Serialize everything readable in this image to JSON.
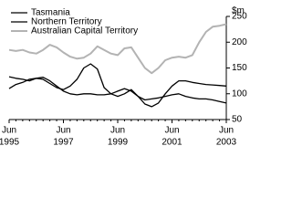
{
  "chart_data": {
    "type": "line",
    "y_unit": "$m",
    "categories": [
      {
        "month": "Jun",
        "year": "1995"
      },
      null,
      null,
      null,
      null,
      null,
      null,
      null,
      {
        "month": "Jun",
        "year": "1997"
      },
      null,
      null,
      null,
      null,
      null,
      null,
      null,
      {
        "month": "Jun",
        "year": "1999"
      },
      null,
      null,
      null,
      null,
      null,
      null,
      null,
      {
        "month": "Jun",
        "year": "2001"
      },
      null,
      null,
      null,
      null,
      null,
      null,
      null,
      {
        "month": "Jun",
        "year": "2003"
      }
    ],
    "series": [
      {
        "name": "Tasmania",
        "color": "#000000",
        "width": 1.3,
        "values": [
          110,
          118,
          122,
          128,
          130,
          128,
          120,
          112,
          108,
          115,
          128,
          150,
          158,
          148,
          112,
          100,
          95,
          100,
          108,
          95,
          80,
          75,
          82,
          100,
          115,
          125,
          125,
          122,
          120,
          118,
          117,
          116,
          115
        ]
      },
      {
        "name": "Northern Territory",
        "color": "#000000",
        "width": 1.3,
        "values": [
          133,
          130,
          128,
          125,
          130,
          132,
          125,
          115,
          105,
          100,
          98,
          100,
          100,
          98,
          98,
          100,
          105,
          110,
          105,
          95,
          88,
          90,
          92,
          95,
          98,
          100,
          95,
          92,
          90,
          90,
          88,
          85,
          82
        ]
      },
      {
        "name": "Australian Capital Territory",
        "color": "#b3b3b3",
        "width": 2,
        "values": [
          185,
          183,
          185,
          180,
          178,
          185,
          195,
          190,
          180,
          172,
          168,
          170,
          178,
          192,
          185,
          178,
          175,
          188,
          190,
          170,
          150,
          140,
          150,
          165,
          170,
          172,
          170,
          175,
          200,
          220,
          230,
          232,
          235
        ]
      }
    ],
    "ylim": [
      50,
      250
    ],
    "yticks": [
      50,
      100,
      150,
      200,
      250
    ]
  }
}
